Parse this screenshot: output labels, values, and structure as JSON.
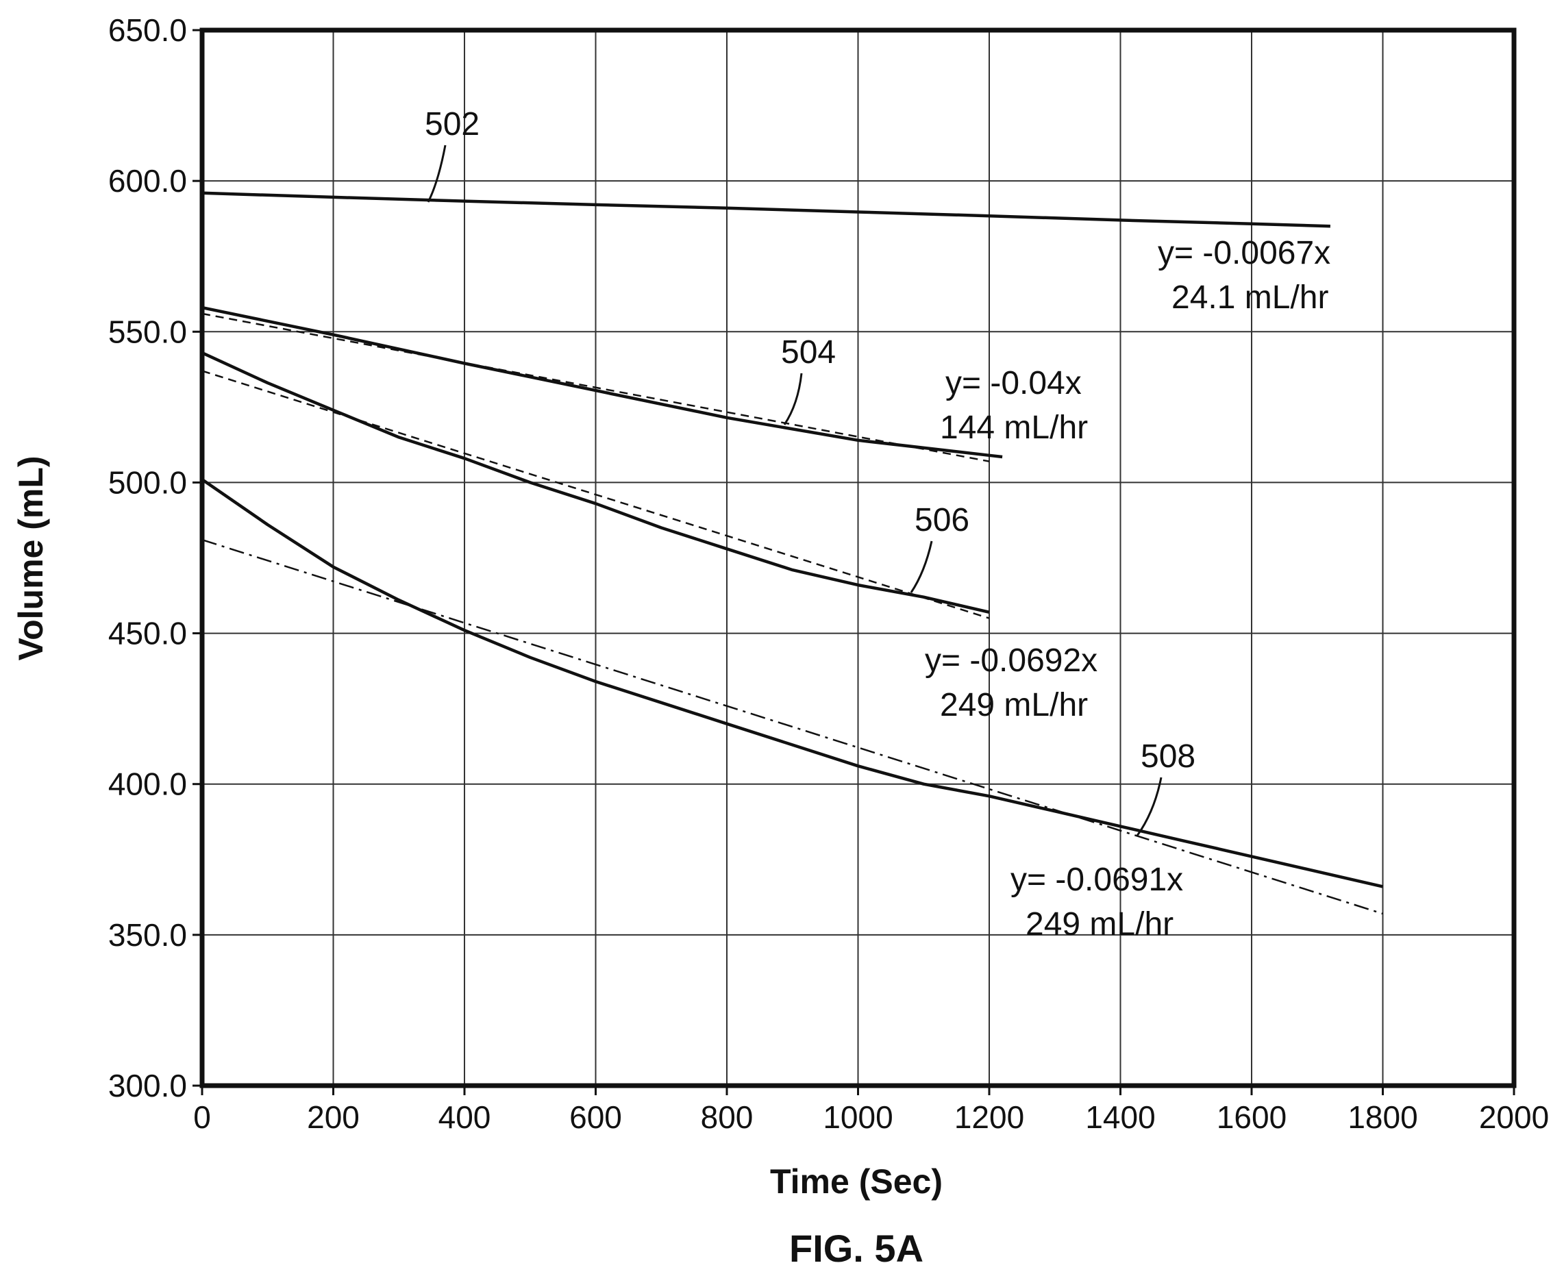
{
  "figure_label": "FIG. 5A",
  "chart_data": {
    "type": "line",
    "xlabel": "Time (Sec)",
    "ylabel": "Volume (mL)",
    "xlim": [
      0,
      2000
    ],
    "ylim": [
      300,
      650
    ],
    "x_ticks": [
      "0",
      "200",
      "400",
      "600",
      "800",
      "1000",
      "1200",
      "1400",
      "1600",
      "1800",
      "2000"
    ],
    "y_ticks": [
      "300.0",
      "350.0",
      "400.0",
      "450.0",
      "500.0",
      "550.0",
      "600.0",
      "650.0"
    ],
    "grid": true,
    "series": [
      {
        "ref": "502",
        "style": "solid",
        "x": [
          0,
          200,
          400,
          600,
          800,
          1000,
          1200,
          1400,
          1600,
          1720
        ],
        "y": [
          596,
          594.6,
          593.3,
          592.1,
          591,
          589.7,
          588.4,
          587,
          585.8,
          585
        ]
      },
      {
        "ref": "504",
        "style": "solid",
        "x": [
          0,
          200,
          400,
          600,
          800,
          1000,
          1200,
          1220
        ],
        "y": [
          558,
          549,
          539.5,
          530.5,
          521.5,
          514,
          509,
          508.5
        ]
      },
      {
        "ref": "504-fit",
        "style": "dashed",
        "x": [
          0,
          1200
        ],
        "y": [
          556,
          507
        ]
      },
      {
        "ref": "506",
        "style": "solid",
        "x": [
          0,
          100,
          200,
          300,
          400,
          500,
          600,
          700,
          800,
          900,
          1000,
          1100,
          1200
        ],
        "y": [
          543,
          533,
          524,
          515,
          508,
          500,
          493,
          485,
          478,
          471,
          466,
          462,
          457
        ]
      },
      {
        "ref": "506-fit",
        "style": "dashed",
        "x": [
          0,
          1200
        ],
        "y": [
          537,
          455
        ]
      },
      {
        "ref": "508",
        "style": "solid",
        "x": [
          0,
          100,
          200,
          300,
          400,
          500,
          600,
          700,
          800,
          900,
          1000,
          1100,
          1200,
          1300,
          1400,
          1500,
          1600,
          1700,
          1800
        ],
        "y": [
          501,
          486,
          472,
          461,
          451,
          442,
          434,
          427,
          420,
          413,
          406,
          400,
          396,
          391,
          386,
          381,
          376,
          371,
          366
        ]
      },
      {
        "ref": "508-fit",
        "style": "dashdot",
        "x": [
          0,
          1800
        ],
        "y": [
          481,
          357
        ]
      }
    ],
    "annotations": [
      {
        "ref": "502",
        "label": "502",
        "eq": "y= -0.0067x",
        "rate": "24.1 mL/hr"
      },
      {
        "ref": "504",
        "label": "504",
        "eq": "y= -0.04x",
        "rate": "144 mL/hr"
      },
      {
        "ref": "506",
        "label": "506",
        "eq": "y= -0.0692x",
        "rate": "249 mL/hr"
      },
      {
        "ref": "508",
        "label": "508",
        "eq": "y= -0.0691x",
        "rate": "249 mL/hr"
      }
    ]
  }
}
